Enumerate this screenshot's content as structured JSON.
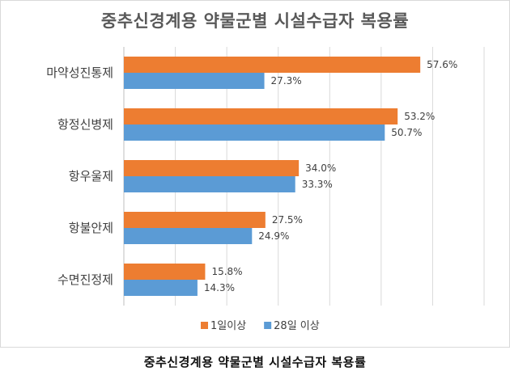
{
  "caption": "중추신경계용 약물군별 시설수급자 복용률",
  "chart_data": {
    "type": "bar",
    "orientation": "horizontal",
    "title": "중추신경계용 약물군별 시설수급자 복용률",
    "categories": [
      "마약성진통제",
      "항정신병제",
      "항우울제",
      "항불안제",
      "수면진정제"
    ],
    "series": [
      {
        "name": "1일이상",
        "color": "#ED7D31",
        "values": [
          57.6,
          53.2,
          34.0,
          27.5,
          15.8
        ],
        "labels": [
          "57.6%",
          "53.2%",
          "34.0%",
          "27.5%",
          "15.8%"
        ]
      },
      {
        "name": "28일 이상",
        "color": "#5B9BD5",
        "values": [
          27.3,
          50.7,
          33.3,
          24.9,
          14.3
        ],
        "labels": [
          "27.3%",
          "50.7%",
          "33.3%",
          "24.9%",
          "14.3%"
        ]
      }
    ],
    "xlim": [
      0,
      70
    ],
    "grid": true,
    "legend_position": "bottom"
  }
}
